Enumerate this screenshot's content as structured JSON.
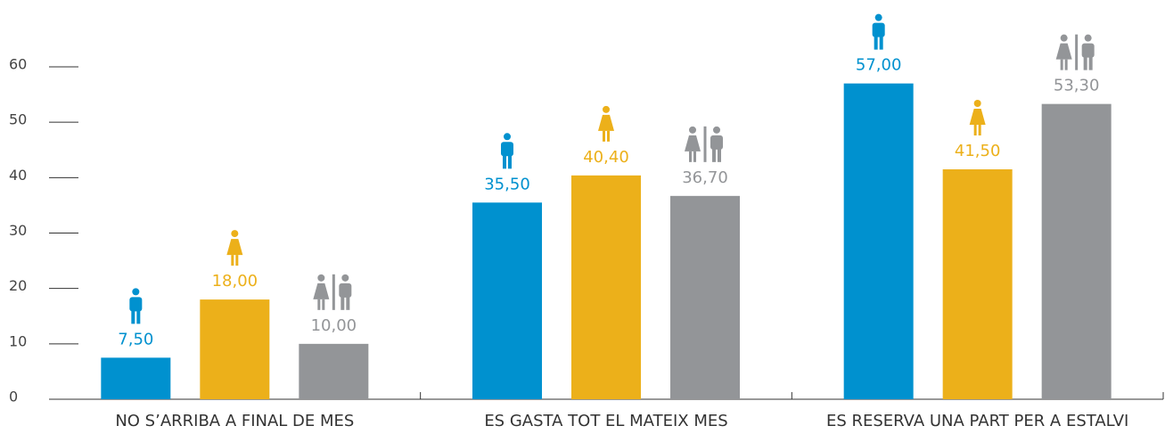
{
  "chart_data": {
    "type": "bar",
    "categories": [
      "NO S’ARRIBA A FINAL DE MES",
      "ES GASTA TOT EL MATEIX MES",
      "ES RESERVA UNA PART PER A ESTALVI"
    ],
    "series": [
      {
        "color": "#0091cf",
        "values": [
          7.5,
          35.5,
          57
        ],
        "value_labels": [
          "7,50",
          "35,50",
          "57,00"
        ]
      },
      {
        "color": "#ecb01a",
        "values": [
          18,
          40.4,
          41.5
        ],
        "value_labels": [
          "18,00",
          "40,40",
          "41,50"
        ]
      },
      {
        "color": "#939598",
        "values": [
          10,
          36.7,
          53.3
        ],
        "value_labels": [
          "10,00",
          "36,70",
          "53,30"
        ]
      }
    ],
    "ylim": [
      0,
      60
    ],
    "yticks": [
      0,
      10,
      20,
      30,
      40,
      50,
      60
    ]
  }
}
